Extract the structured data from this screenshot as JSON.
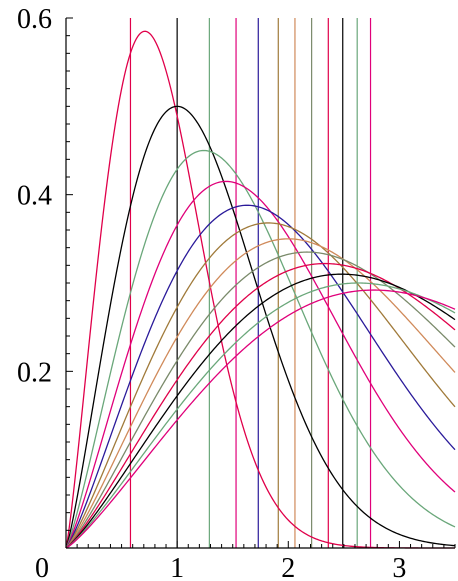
{
  "chart_data": {
    "type": "line",
    "title": "",
    "xlabel": "",
    "ylabel": "",
    "xlim": [
      0,
      3.5
    ],
    "ylim": [
      0,
      0.6
    ],
    "grid": false,
    "legend": "none",
    "x_ticks": [
      {
        "value": 0,
        "label": "0"
      },
      {
        "value": 1,
        "label": "1"
      },
      {
        "value": 2,
        "label": "2"
      },
      {
        "value": 3,
        "label": "3"
      }
    ],
    "y_ticks": [
      {
        "value": 0.2,
        "label": "0.2"
      },
      {
        "value": 0.4,
        "label": "0.4"
      },
      {
        "value": 0.6,
        "label": "0.6"
      }
    ],
    "x_minor_step": 0.1,
    "y_minor_step": 0.02,
    "series": [
      {
        "color": "#e0004a",
        "peak_x": 0.71,
        "peak_y": 0.585,
        "vline_x": 0.58
      },
      {
        "color": "#000000",
        "peak_x": 1.0,
        "peak_y": 0.5,
        "vline_x": 1.0
      },
      {
        "color": "#6aa77a",
        "peak_x": 1.24,
        "peak_y": 0.45,
        "vline_x": 1.29
      },
      {
        "color": "#e0007a",
        "peak_x": 1.44,
        "peak_y": 0.415,
        "vline_x": 1.53
      },
      {
        "color": "#2a1a9a",
        "peak_x": 1.63,
        "peak_y": 0.388,
        "vline_x": 1.73
      },
      {
        "color": "#a07a3a",
        "peak_x": 1.82,
        "peak_y": 0.368,
        "vline_x": 1.91
      },
      {
        "color": "#d08a5a",
        "peak_x": 2.0,
        "peak_y": 0.35,
        "vline_x": 2.06
      },
      {
        "color": "#7a8a6a",
        "peak_x": 2.17,
        "peak_y": 0.335,
        "vline_x": 2.21
      },
      {
        "color": "#e0004a",
        "peak_x": 2.33,
        "peak_y": 0.322,
        "vline_x": 2.36
      },
      {
        "color": "#000000",
        "peak_x": 2.48,
        "peak_y": 0.31,
        "vline_x": 2.49
      },
      {
        "color": "#6aa77a",
        "peak_x": 2.63,
        "peak_y": 0.3,
        "vline_x": 2.62
      },
      {
        "color": "#e0007a",
        "peak_x": 2.77,
        "peak_y": 0.292,
        "vline_x": 2.74
      }
    ]
  }
}
